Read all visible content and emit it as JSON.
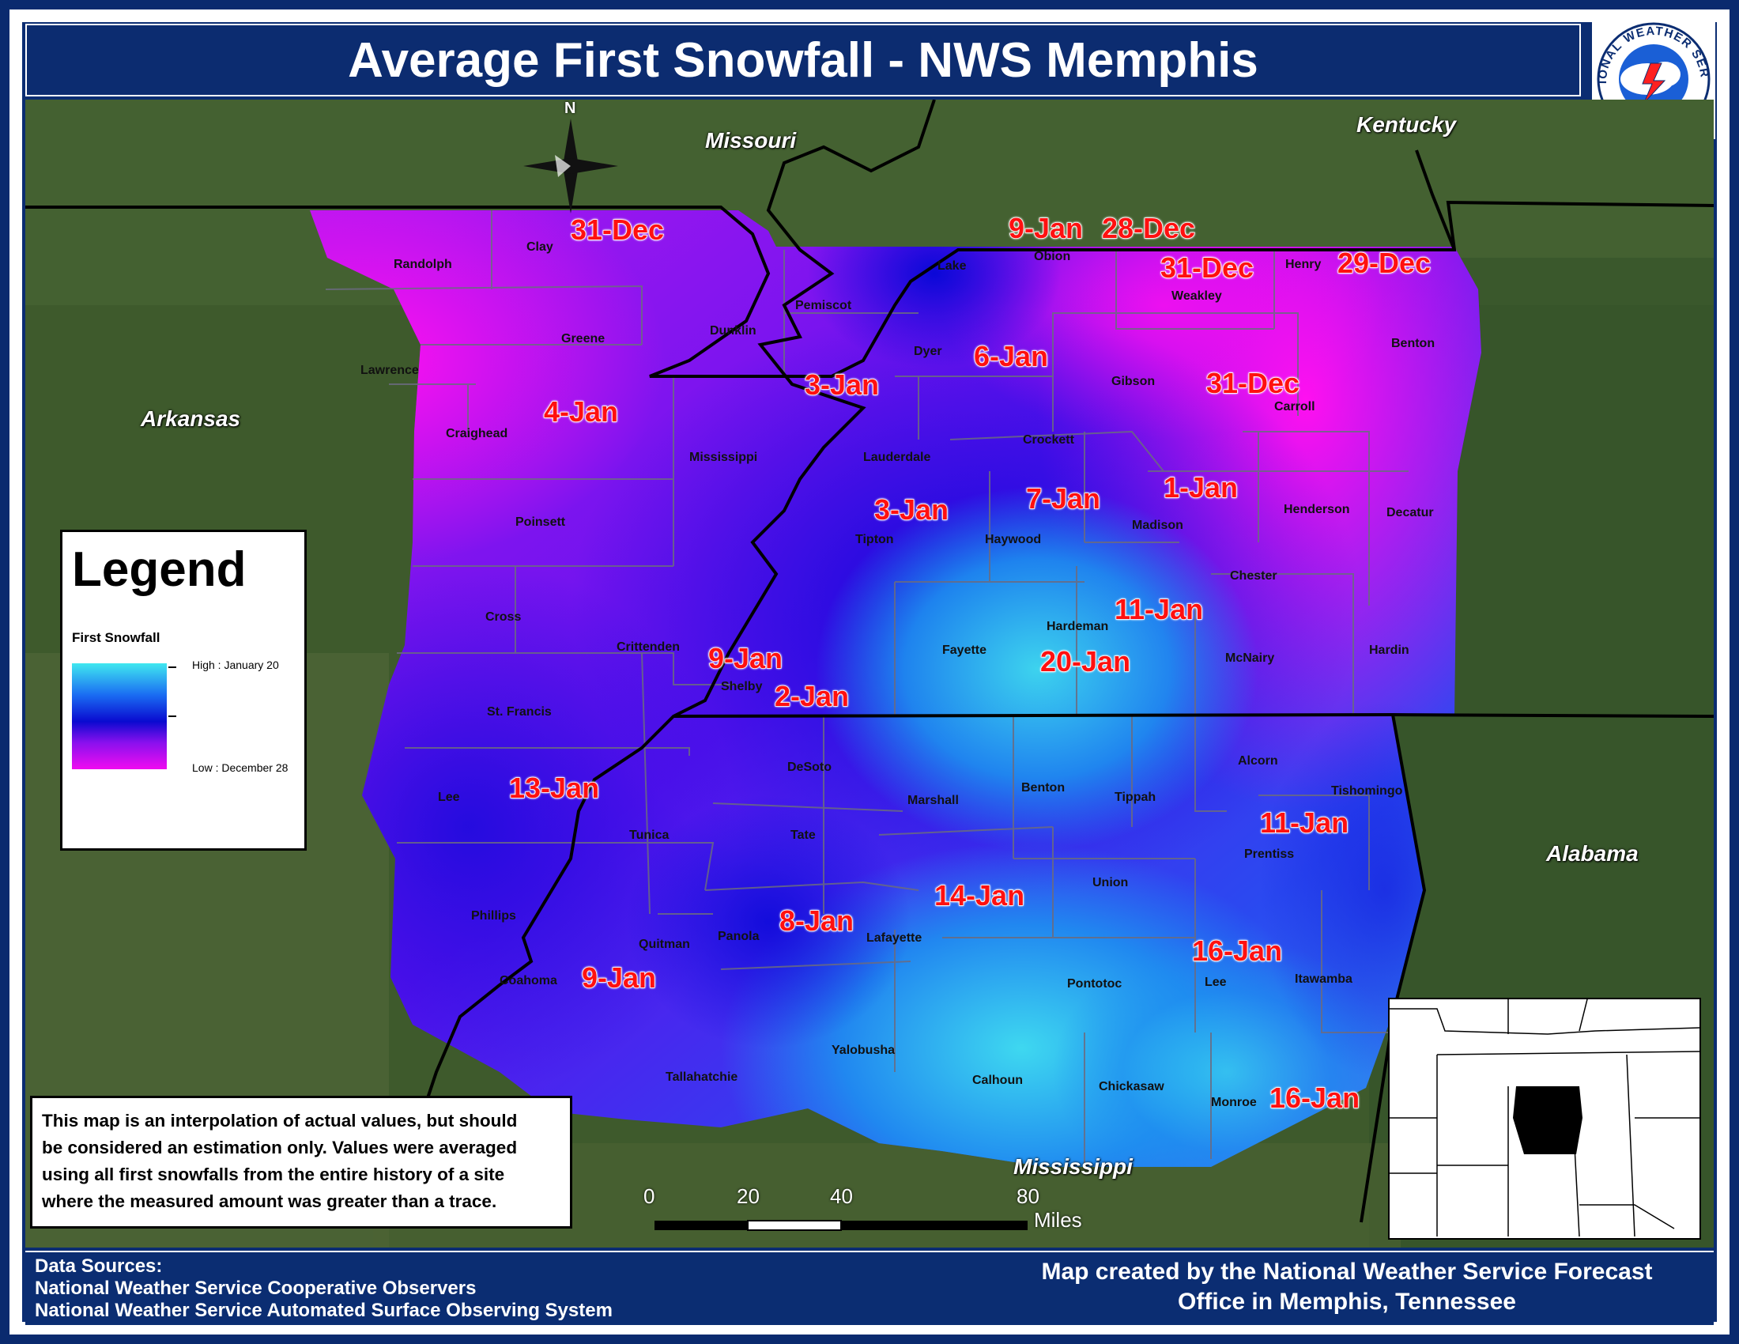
{
  "title": "Average First Snowfall - NWS Memphis",
  "logo": {
    "text_top": "NATIONAL WEATHER SERVICE",
    "icon": "nws-logo-icon"
  },
  "legend": {
    "title": "Legend",
    "subtitle": "First Snowfall",
    "high": "High : January 20",
    "low": "Low : December 28",
    "ramp_colors": [
      "#40e8f0",
      "#1a6cf2",
      "#0a0ad0",
      "#8a10ee",
      "#f00cf0"
    ]
  },
  "note": {
    "lines": [
      "This map is an interpolation of actual values, but should",
      "be considered an estimation only. Values were averaged",
      "using all first snowfalls from the entire history of a site",
      "where the measured amount was greater than a trace."
    ]
  },
  "footer": {
    "sources_title": "Data Sources:",
    "source1": "National Weather Service Cooperative Observers",
    "source2": "National Weather Service Automated Surface Observing System",
    "credit1": "Map created by the National Weather Service Forecast",
    "credit2": "Office in Memphis, Tennessee"
  },
  "compass": {
    "north": "N"
  },
  "scale": {
    "ticks": [
      "0",
      "20",
      "40",
      "80"
    ],
    "unit": "Miles"
  },
  "states": {
    "missouri": "Missouri",
    "kentucky": "Kentucky",
    "arkansas": "Arkansas",
    "alabama": "Alabama",
    "mississippi": "Mississippi"
  },
  "dates": {
    "clay": "31-Dec",
    "obion1": "9-Jan",
    "obion2": "28-Dec",
    "weakley": "31-Dec",
    "henry": "29-Dec",
    "dyer": "6-Jan",
    "pemiscot": "3-Jan",
    "craighead": "4-Jan",
    "carroll": "31-Dec",
    "madison": "1-Jan",
    "haywood": "7-Jan",
    "tipton": "3-Jan",
    "mcnairy": "11-Jan",
    "fayette": "20-Jan",
    "crittenden": "9-Jan",
    "shelby": "2-Jan",
    "lee_ar": "13-Jan",
    "prentiss": "11-Jan",
    "lafayette": "14-Jan",
    "panola": "8-Jan",
    "lee_ms": "16-Jan",
    "coahoma": "9-Jan",
    "monroe": "16-Jan"
  },
  "counties": {
    "randolph": "Randolph",
    "clay": "Clay",
    "greene": "Greene",
    "lawrence": "Lawrence",
    "craighead": "Craighead",
    "dunklin": "Dunklin",
    "pemiscot": "Pemiscot",
    "lake": "Lake",
    "obion": "Obion",
    "weakley": "Weakley",
    "henry": "Henry",
    "benton_tn": "Benton",
    "dyer": "Dyer",
    "gibson": "Gibson",
    "carroll": "Carroll",
    "mississippi": "Mississippi",
    "lauderdale": "Lauderdale",
    "crockett": "Crockett",
    "poinsett": "Poinsett",
    "tipton": "Tipton",
    "haywood": "Haywood",
    "madison": "Madison",
    "henderson": "Henderson",
    "decatur": "Decatur",
    "chester": "Chester",
    "cross": "Cross",
    "crittenden": "Crittenden",
    "fayette": "Fayette",
    "hardeman": "Hardeman",
    "mcnairy": "McNairy",
    "hardin": "Hardin",
    "st_francis": "St. Francis",
    "shelby": "Shelby",
    "lee_ar": "Lee",
    "desoto": "DeSoto",
    "benton_ms": "Benton",
    "marshall": "Marshall",
    "tippah": "Tippah",
    "alcorn": "Alcorn",
    "tishomingo": "Tishomingo",
    "tunica": "Tunica",
    "tate": "Tate",
    "prentiss": "Prentiss",
    "union": "Union",
    "phillips": "Phillips",
    "quitman": "Quitman",
    "panola": "Panola",
    "lafayette": "Lafayette",
    "pontotoc": "Pontotoc",
    "lee_ms": "Lee",
    "itawamba": "Itawamba",
    "coahoma": "Coahoma",
    "tallahatchie": "Tallahatchie",
    "yalobusha": "Yalobusha",
    "calhoun": "Calhoun",
    "chickasaw": "Chickasaw",
    "monroe": "Monroe"
  }
}
